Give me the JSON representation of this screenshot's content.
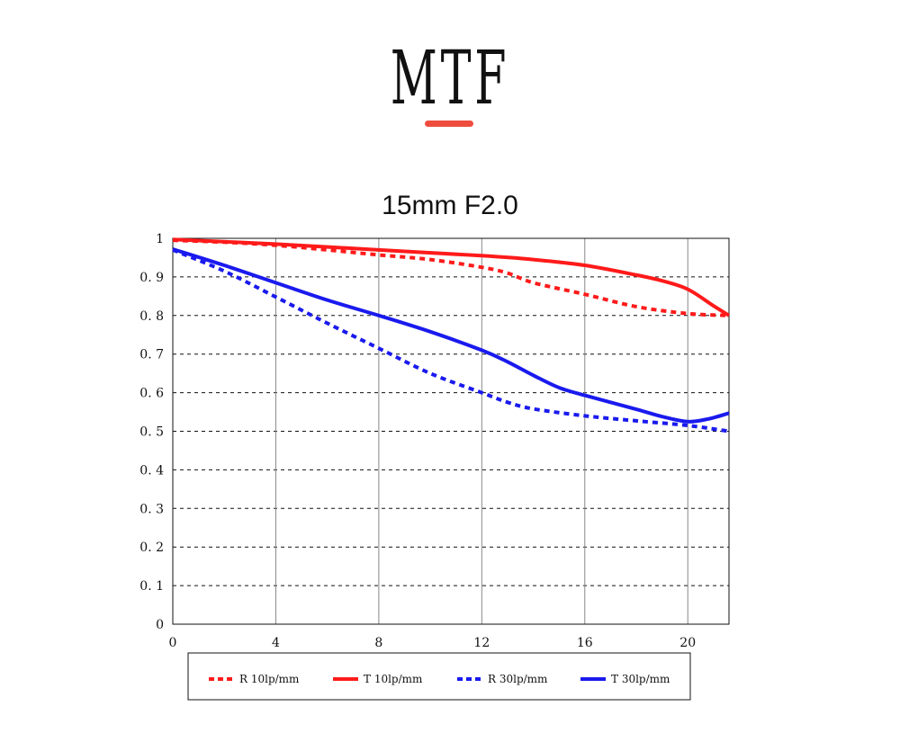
{
  "header": {
    "title": "MTF"
  },
  "chart_data": {
    "type": "line",
    "title": "15mm F2.0",
    "xlabel": "",
    "ylabel": "",
    "xlim": [
      0,
      21.6
    ],
    "ylim": [
      0,
      1
    ],
    "xticks": [
      "0",
      "4",
      "8",
      "12",
      "16",
      "20"
    ],
    "yticks": [
      "0",
      "0.1",
      "0.2",
      "0.3",
      "0.4",
      "0.5",
      "0.6",
      "0.7",
      "0.8",
      "0.9",
      "1"
    ],
    "grid": "dashed horizontal, solid vertical",
    "legend_position": "bottom",
    "series": [
      {
        "name": "R 10lp/mm",
        "color": "#ff1a1a",
        "style": "dashed",
        "points": [
          [
            0,
            0.995
          ],
          [
            2,
            0.99
          ],
          [
            4,
            0.982
          ],
          [
            6,
            0.97
          ],
          [
            8,
            0.957
          ],
          [
            10,
            0.945
          ],
          [
            12,
            0.925
          ],
          [
            13,
            0.91
          ],
          [
            14,
            0.885
          ],
          [
            16,
            0.855
          ],
          [
            18,
            0.823
          ],
          [
            20,
            0.805
          ],
          [
            21.6,
            0.8
          ]
        ]
      },
      {
        "name": "T 10lp/mm",
        "color": "#ff1a1a",
        "style": "solid",
        "points": [
          [
            0,
            0.997
          ],
          [
            4,
            0.985
          ],
          [
            8,
            0.97
          ],
          [
            12,
            0.955
          ],
          [
            14,
            0.945
          ],
          [
            16,
            0.93
          ],
          [
            18,
            0.905
          ],
          [
            19,
            0.89
          ],
          [
            20,
            0.868
          ],
          [
            21,
            0.825
          ],
          [
            21.6,
            0.8
          ]
        ]
      },
      {
        "name": "R 30lp/mm",
        "color": "#1a1aee",
        "style": "dashed",
        "points": [
          [
            0,
            0.97
          ],
          [
            2,
            0.915
          ],
          [
            4,
            0.848
          ],
          [
            6,
            0.78
          ],
          [
            8,
            0.715
          ],
          [
            10,
            0.65
          ],
          [
            12,
            0.6
          ],
          [
            13,
            0.575
          ],
          [
            14,
            0.558
          ],
          [
            16,
            0.54
          ],
          [
            18,
            0.527
          ],
          [
            20,
            0.515
          ],
          [
            21.6,
            0.5
          ]
        ]
      },
      {
        "name": "T 30lp/mm",
        "color": "#1a1aee",
        "style": "solid",
        "points": [
          [
            0,
            0.972
          ],
          [
            2,
            0.93
          ],
          [
            4,
            0.885
          ],
          [
            6,
            0.84
          ],
          [
            8,
            0.8
          ],
          [
            10,
            0.758
          ],
          [
            12,
            0.71
          ],
          [
            13,
            0.68
          ],
          [
            14,
            0.645
          ],
          [
            15,
            0.613
          ],
          [
            16,
            0.593
          ],
          [
            18,
            0.557
          ],
          [
            19,
            0.538
          ],
          [
            20,
            0.525
          ],
          [
            20.8,
            0.532
          ],
          [
            21.6,
            0.547
          ]
        ]
      }
    ]
  }
}
